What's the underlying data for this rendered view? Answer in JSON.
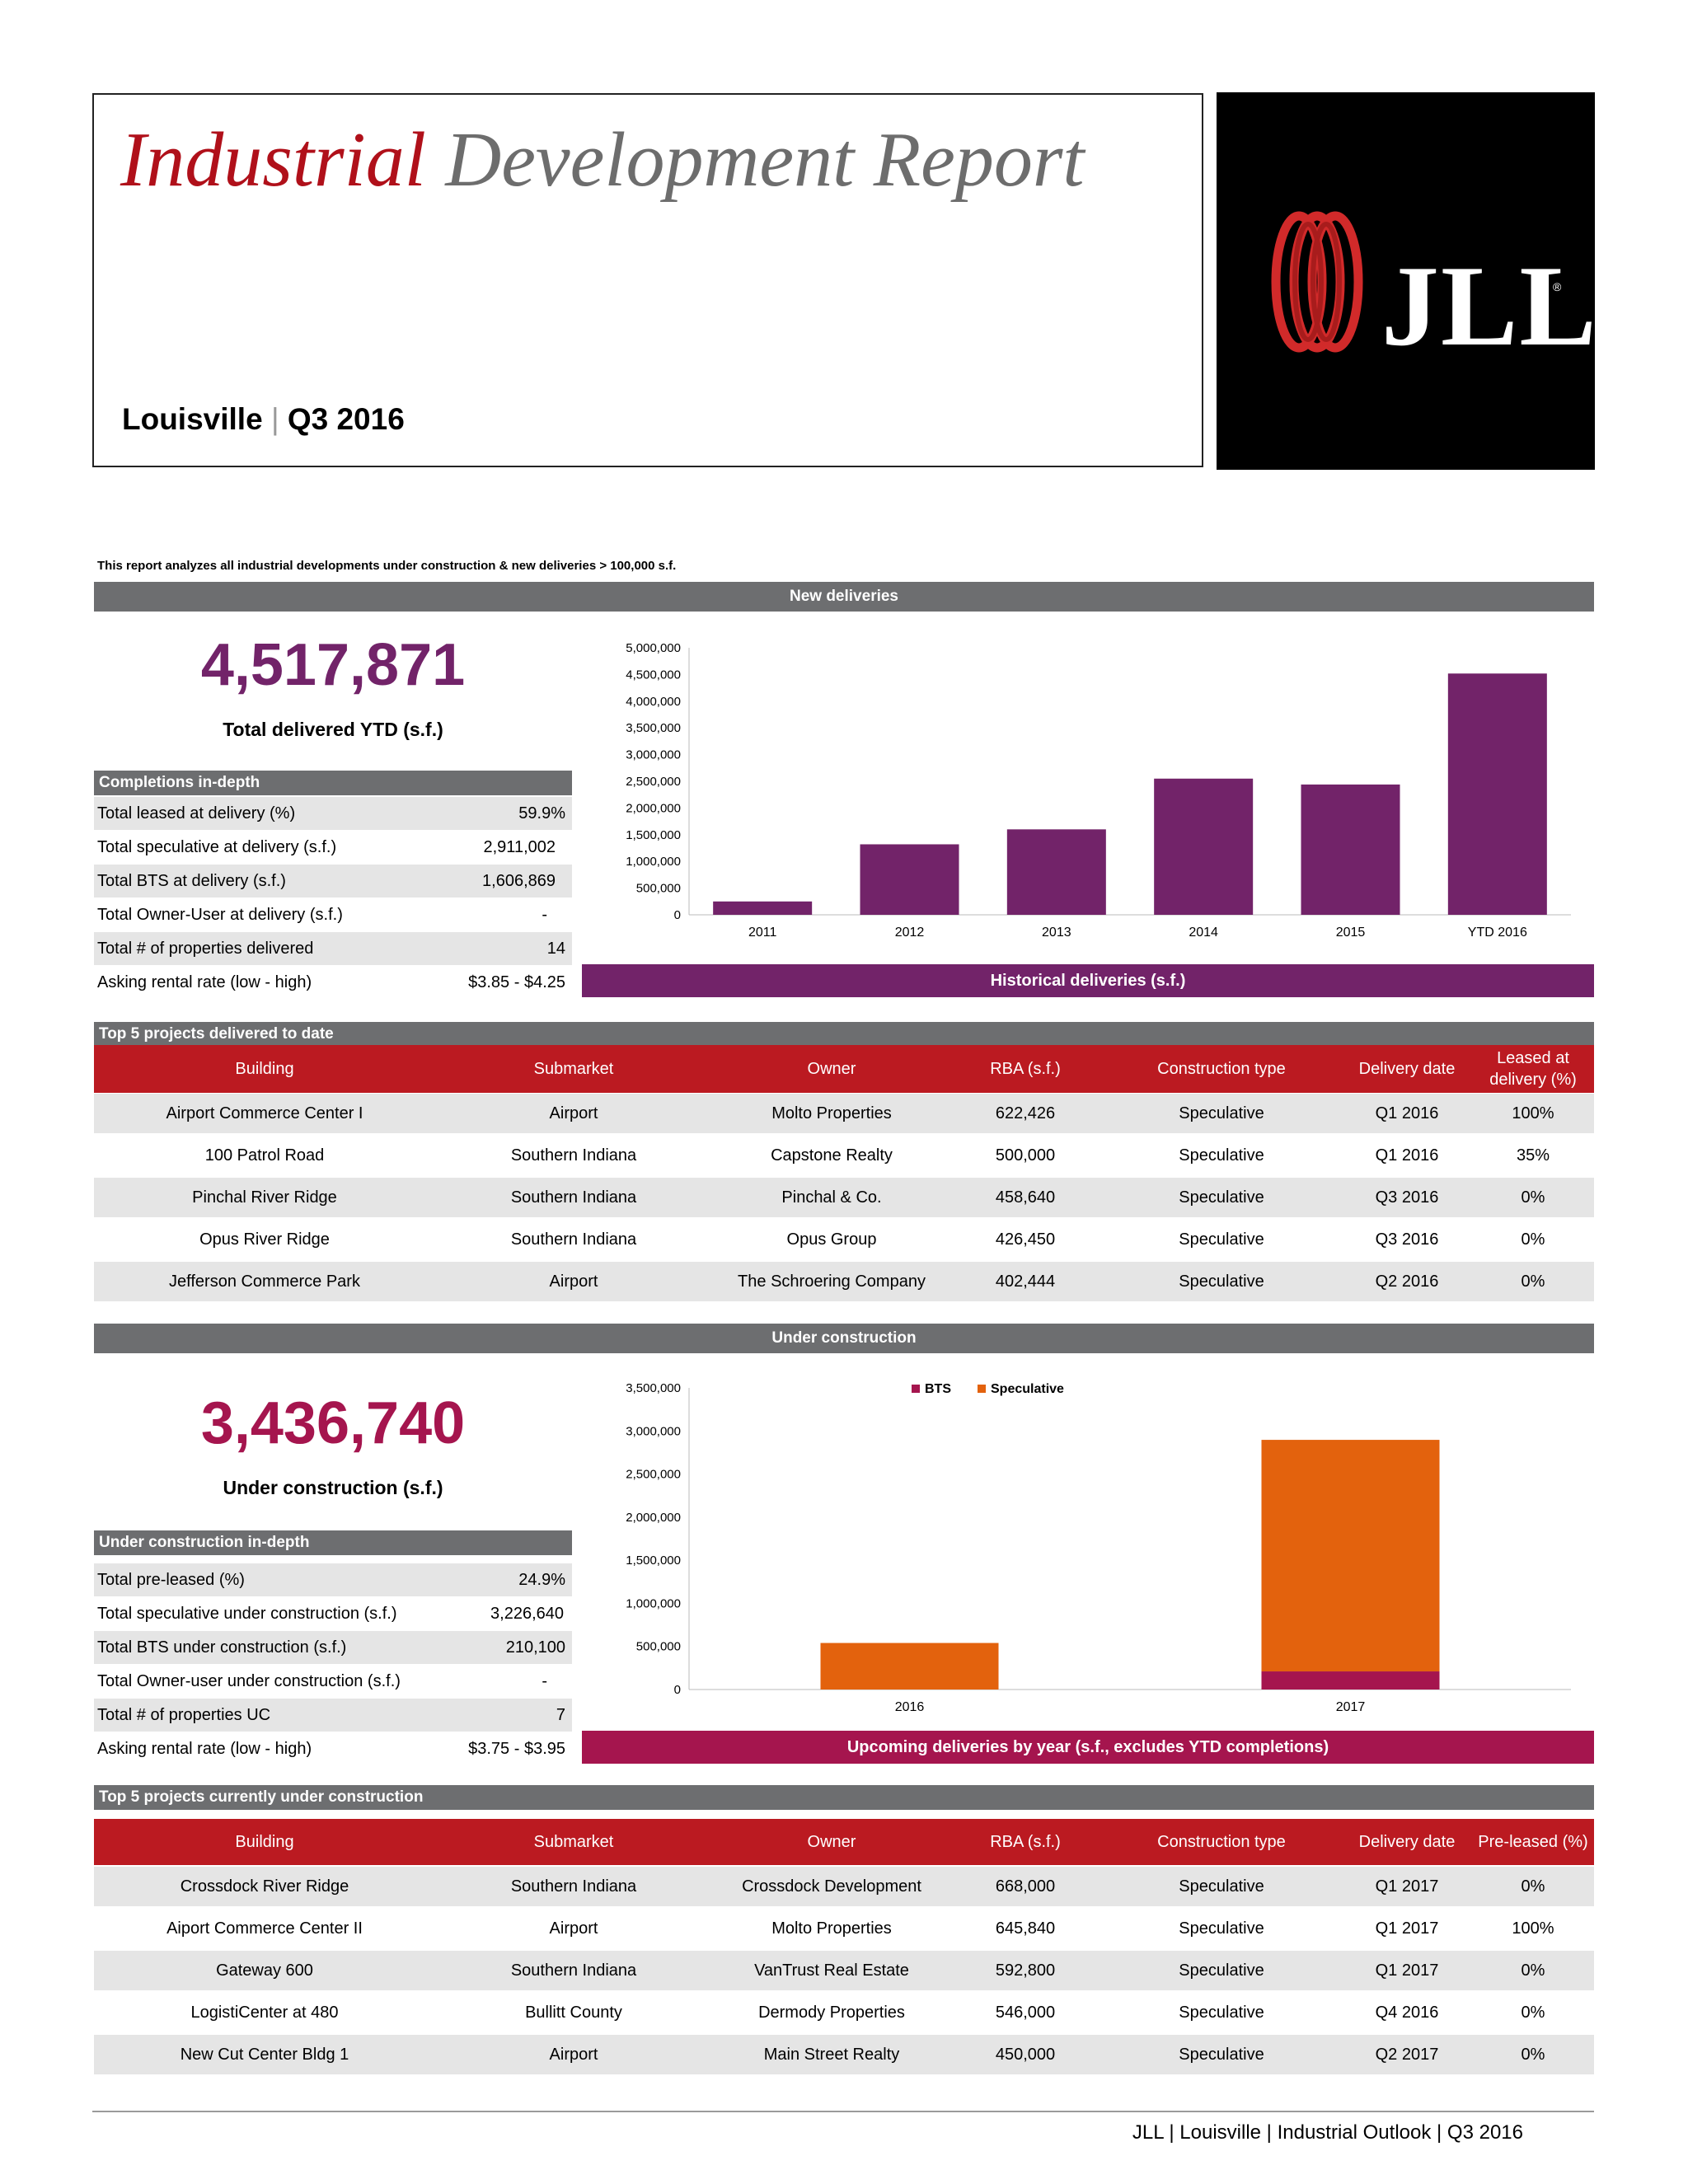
{
  "header": {
    "title_red": "Industrial",
    "title_gray": "Development Report",
    "location": "Louisville",
    "separator": "|",
    "period": "Q3 2016",
    "logo_text": "JLL",
    "logo_mark": "®"
  },
  "intro": "This report analyzes all industrial developments under construction & new deliveries > 100,000 s.f.",
  "new_deliveries": {
    "section_title": "New deliveries",
    "total": "4,517,871",
    "total_label": "Total delivered YTD (s.f.)",
    "indepth_title": "Completions in-depth",
    "rows": [
      {
        "label": "Total leased at delivery (%)",
        "value": "59.9%"
      },
      {
        "label": "Total speculative at delivery (s.f.)",
        "value": "2,911,002"
      },
      {
        "label": "Total BTS at delivery (s.f.)",
        "value": "1,606,869"
      },
      {
        "label": "Total Owner-User at delivery (s.f.)",
        "value": "-"
      },
      {
        "label": "Total # of properties delivered",
        "value": "14"
      },
      {
        "label": "Asking rental rate (low - high)",
        "value": "$3.85 - $4.25"
      }
    ],
    "chart_caption": "Historical deliveries (s.f.)"
  },
  "top_delivered": {
    "title": "Top 5 projects delivered to date",
    "headers": [
      "Building",
      "Submarket",
      "Owner",
      "RBA (s.f.)",
      "Construction type",
      "Delivery date",
      "Leased at delivery (%)"
    ],
    "rows": [
      [
        "Airport Commerce Center I",
        "Airport",
        "Molto Properties",
        "622,426",
        "Speculative",
        "Q1 2016",
        "100%"
      ],
      [
        "100 Patrol Road",
        "Southern Indiana",
        "Capstone Realty",
        "500,000",
        "Speculative",
        "Q1 2016",
        "35%"
      ],
      [
        "Pinchal River Ridge",
        "Southern Indiana",
        "Pinchal & Co.",
        "458,640",
        "Speculative",
        "Q3 2016",
        "0%"
      ],
      [
        "Opus River Ridge",
        "Southern Indiana",
        "Opus Group",
        "426,450",
        "Speculative",
        "Q3 2016",
        "0%"
      ],
      [
        "Jefferson Commerce Park",
        "Airport",
        "The Schroering Company",
        "402,444",
        "Speculative",
        "Q2 2016",
        "0%"
      ]
    ]
  },
  "under_construction": {
    "section_title": "Under construction",
    "total": "3,436,740",
    "total_label": "Under construction (s.f.)",
    "indepth_title": "Under construction in-depth",
    "rows": [
      {
        "label": "Total pre-leased (%)",
        "value": "24.9%"
      },
      {
        "label": "Total speculative under construction (s.f.)",
        "value": "3,226,640"
      },
      {
        "label": "Total BTS under construction (s.f.)",
        "value": "210,100"
      },
      {
        "label": "Total Owner-user under construction (s.f.)",
        "value": "-"
      },
      {
        "label": "Total # of properties UC",
        "value": "7"
      },
      {
        "label": "Asking rental rate (low - high)",
        "value": "$3.75 - $3.95"
      }
    ],
    "chart_caption": "Upcoming deliveries by year (s.f., excludes YTD completions)"
  },
  "top_uc": {
    "title": "Top 5 projects currently under construction",
    "headers": [
      "Building",
      "Submarket",
      "Owner",
      "RBA (s.f.)",
      "Construction type",
      "Delivery date",
      "Pre-leased (%)"
    ],
    "rows": [
      [
        "Crossdock River Ridge",
        "Southern Indiana",
        "Crossdock Development",
        "668,000",
        "Speculative",
        "Q1 2017",
        "0%"
      ],
      [
        "Aiport Commerce Center II",
        "Airport",
        "Molto Properties",
        "645,840",
        "Speculative",
        "Q1 2017",
        "100%"
      ],
      [
        "Gateway 600",
        "Southern Indiana",
        "VanTrust Real Estate",
        "592,800",
        "Speculative",
        "Q1 2017",
        "0%"
      ],
      [
        "LogistiCenter at 480",
        "Bullitt County",
        "Dermody Properties",
        "546,000",
        "Speculative",
        "Q4 2016",
        "0%"
      ],
      [
        "New Cut Center Bldg 1",
        "Airport",
        "Main Street Realty",
        "450,000",
        "Speculative",
        "Q2 2017",
        "0%"
      ]
    ]
  },
  "footer": "JLL | Louisville | Industrial Outlook | Q3 2016",
  "colors": {
    "purple": "#722369",
    "magenta": "#a5154e",
    "red": "#bb1a21",
    "orange": "#e3620d",
    "gray": "#6d6e70"
  },
  "chart_data": [
    {
      "type": "bar",
      "title": "",
      "categories": [
        "2011",
        "2012",
        "2013",
        "2014",
        "2015",
        "YTD 2016"
      ],
      "values": [
        250000,
        1320000,
        1600000,
        2550000,
        2440000,
        4517871
      ],
      "ylim": [
        0,
        5000000
      ],
      "yticks": [
        "0",
        "500,000",
        "1,000,000",
        "1,500,000",
        "2,000,000",
        "2,500,000",
        "3,000,000",
        "3,500,000",
        "4,000,000",
        "4,500,000",
        "5,000,000"
      ],
      "grid": false
    },
    {
      "type": "bar",
      "stacked": true,
      "title": "",
      "categories": [
        "2016",
        "2017"
      ],
      "series": [
        {
          "name": "BTS",
          "values": [
            0,
            210100
          ]
        },
        {
          "name": "Speculative",
          "values": [
            540000,
            2686640
          ]
        }
      ],
      "ylim": [
        0,
        3500000
      ],
      "yticks": [
        "0",
        "500,000",
        "1,000,000",
        "1,500,000",
        "2,000,000",
        "2,500,000",
        "3,000,000",
        "3,500,000"
      ],
      "legend": "top-center",
      "grid": false
    }
  ]
}
